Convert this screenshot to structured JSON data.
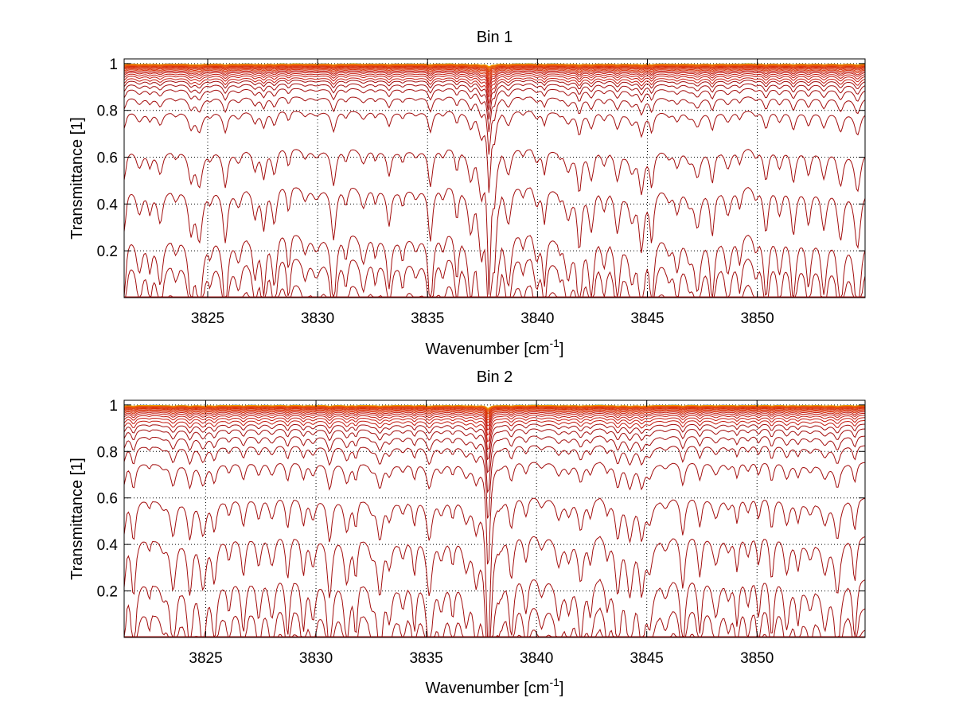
{
  "chart_data": [
    {
      "type": "line",
      "title": "Bin 1",
      "xlabel": "Wavenumber [cm",
      "xlabel_superscript": "-1",
      "xlabel_suffix": "]",
      "ylabel": "Transmittance [1]",
      "xlim": [
        3821.2,
        3854.9
      ],
      "ylim": [
        0.0,
        1.02
      ],
      "xticks": [
        3825,
        3830,
        3835,
        3840,
        3845,
        3850
      ],
      "xtick_labels": [
        "3825",
        "3830",
        "3835",
        "3840",
        "3845",
        "3850"
      ],
      "yticks": [
        0.2,
        0.4,
        0.6,
        0.8,
        1.0
      ],
      "ytick_labels": [
        "0.2",
        "0.4",
        "0.6",
        "0.8",
        "1"
      ],
      "grid": true,
      "grid_style": "dotted",
      "series_count": 30,
      "color_scale": "dark red (lowest transmittance) to orange, yellow, green and blue (near 1)",
      "series_baselines": [
        0.0,
        0.07,
        0.18,
        0.28,
        0.48,
        0.64,
        0.8,
        0.86,
        0.895,
        0.915,
        0.93,
        0.94,
        0.95,
        0.958,
        0.965,
        0.97,
        0.975,
        0.979,
        0.983,
        0.986,
        0.989,
        0.991,
        0.993,
        0.995,
        0.996,
        0.997,
        0.998,
        0.999,
        0.9995,
        1.0
      ],
      "strongest_absorption_line": 3837.8,
      "strongest_line_min_on_mid_series": 0.27,
      "colors": [
        "#8b0000",
        "#a50f0f",
        "#be1e1e",
        "#d62b0c",
        "#e85a0a",
        "#f08000",
        "#f0b000",
        "#e8d800",
        "#7fc000",
        "#00a0a0",
        "#1f3fbf"
      ]
    },
    {
      "type": "line",
      "title": "Bin 2",
      "xlabel": "Wavenumber [cm",
      "xlabel_superscript": "-1",
      "xlabel_suffix": "]",
      "ylabel": "Transmittance [1]",
      "xlim": [
        3821.3,
        3854.9
      ],
      "ylim": [
        0.0,
        1.02
      ],
      "xticks": [
        3825,
        3830,
        3835,
        3840,
        3845,
        3850
      ],
      "xtick_labels": [
        "3825",
        "3830",
        "3835",
        "3840",
        "3845",
        "3850"
      ],
      "yticks": [
        0.2,
        0.4,
        0.6,
        0.8,
        1.0
      ],
      "ytick_labels": [
        "0.2",
        "0.4",
        "0.6",
        "0.8",
        "1"
      ],
      "grid": true,
      "grid_style": "dotted",
      "series_count": 30,
      "color_scale": "dark red (lowest transmittance) to orange, yellow, green and blue (near 1)",
      "series_baselines": [
        0.0,
        0.06,
        0.15,
        0.27,
        0.45,
        0.61,
        0.76,
        0.83,
        0.87,
        0.9,
        0.92,
        0.935,
        0.947,
        0.957,
        0.965,
        0.971,
        0.976,
        0.98,
        0.984,
        0.987,
        0.99,
        0.992,
        0.994,
        0.995,
        0.996,
        0.997,
        0.998,
        0.999,
        0.9995,
        1.0
      ],
      "strongest_absorption_line": 3837.8,
      "strongest_line_min_on_mid_series": 0.27,
      "colors": [
        "#8b0000",
        "#a50f0f",
        "#be1e1e",
        "#d62b0c",
        "#e85a0a",
        "#f08000",
        "#f0b000",
        "#e8d800",
        "#7fc000",
        "#00a0a0",
        "#1f3fbf"
      ]
    }
  ]
}
